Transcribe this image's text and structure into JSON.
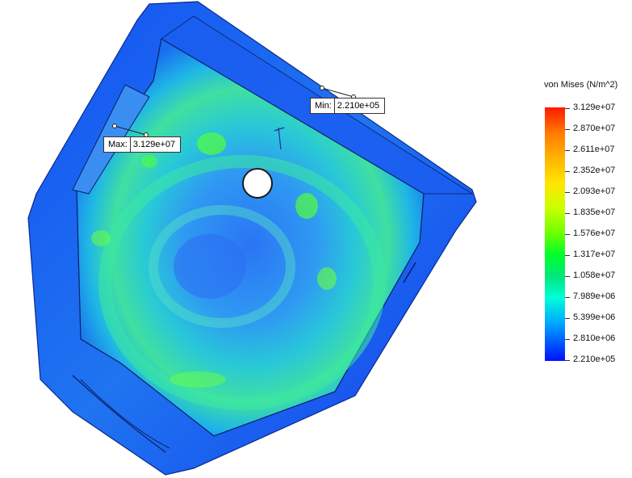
{
  "probes": {
    "min": {
      "key": "Min:",
      "value": "2.210e+05"
    },
    "max": {
      "key": "Max:",
      "value": "3.129e+07"
    }
  },
  "legend": {
    "title": "von Mises (N/m^2)",
    "ticks": [
      "3.129e+07",
      "2.870e+07",
      "2.611e+07",
      "2.352e+07",
      "2.093e+07",
      "1.835e+07",
      "1.576e+07",
      "1.317e+07",
      "1.058e+07",
      "7.989e+06",
      "5.399e+06",
      "2.810e+06",
      "2.210e+05"
    ]
  },
  "colors": {
    "low": "#0010ff",
    "mid": "#00e6a0",
    "high": "#ff1a00"
  }
}
